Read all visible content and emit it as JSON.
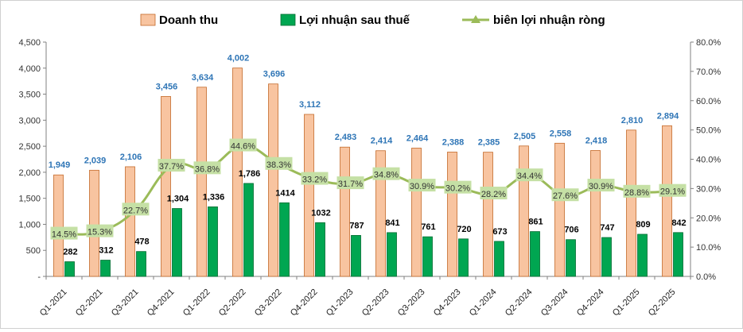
{
  "chart_data": {
    "type": "bar",
    "categories": [
      "Q1-2021",
      "Q2-2021",
      "Q3-2021",
      "Q4-2021",
      "Q1-2022",
      "Q2-2022",
      "Q3-2022",
      "Q4-2022",
      "Q1-2023",
      "Q2-2023",
      "Q3-2023",
      "Q4-2023",
      "Q1-2024",
      "Q2-2024",
      "Q3-2024",
      "Q4-2024",
      "Q1-2025",
      "Q2-2025"
    ],
    "series": [
      {
        "name": "Doanh thu",
        "kind": "bar",
        "axis": "left",
        "color": "#F8C4A0",
        "stroke": "#C46A2A",
        "values": [
          1949,
          2039,
          2106,
          3456,
          3634,
          4002,
          3696,
          3112,
          2483,
          2414,
          2464,
          2388,
          2385,
          2505,
          2558,
          2418,
          2810,
          2894
        ],
        "labels": [
          "1,949",
          "2,039",
          "2,106",
          "3,456",
          "3,634",
          "4,002",
          "3,696",
          "3,112",
          "2,483",
          "2,414",
          "2,464",
          "2,388",
          "2,385",
          "2,505",
          "2,558",
          "2,418",
          "2,810",
          "2,894"
        ]
      },
      {
        "name": "Lợi nhuận sau thuế",
        "kind": "bar",
        "axis": "left",
        "color": "#00A651",
        "stroke": "#006B30",
        "values": [
          282,
          312,
          478,
          1304,
          1336,
          1786,
          1414,
          1032,
          787,
          841,
          761,
          720,
          673,
          861,
          706,
          747,
          809,
          842
        ],
        "labels": [
          "282",
          "312",
          "478",
          "1,304",
          "1,336",
          "1,786",
          "1414",
          "1032",
          "787",
          "841",
          "761",
          "720",
          "673",
          "861",
          "706",
          "747",
          "809",
          "842"
        ]
      },
      {
        "name": "biên lợi nhuận ròng",
        "kind": "line",
        "axis": "right",
        "color": "#9BBB59",
        "values": [
          14.5,
          15.3,
          22.7,
          37.7,
          36.8,
          44.6,
          38.3,
          33.2,
          31.7,
          34.8,
          30.9,
          30.2,
          28.2,
          34.4,
          27.6,
          30.9,
          28.8,
          29.1
        ],
        "labels": [
          "14.5%",
          "15.3%",
          "22.7%",
          "37.7%",
          "36.8%",
          "44.6%",
          "38.3%",
          "33.2%",
          "31.7%",
          "34.8%",
          "30.9%",
          "30.2%",
          "28.2%",
          "34.4%",
          "27.6%",
          "30.9%",
          "28.8%",
          "29.1%"
        ]
      }
    ],
    "y_left": {
      "min": 0,
      "max": 4500,
      "step": 500,
      "ticks": [
        "-",
        "500",
        "1,000",
        "1,500",
        "2,000",
        "2,500",
        "3,000",
        "3,500",
        "4,000",
        "4,500"
      ]
    },
    "y_right": {
      "min": 0,
      "max": 80,
      "step": 10,
      "ticks": [
        "0.0%",
        "10.0%",
        "20.0%",
        "30.0%",
        "40.0%",
        "50.0%",
        "60.0%",
        "70.0%",
        "80.0%"
      ]
    },
    "legend_position": "top",
    "grid": false,
    "colors": {
      "revenue_label": "#2E75B6",
      "margin_label_bg": "#C5E0A5",
      "axis": "#808080"
    }
  }
}
